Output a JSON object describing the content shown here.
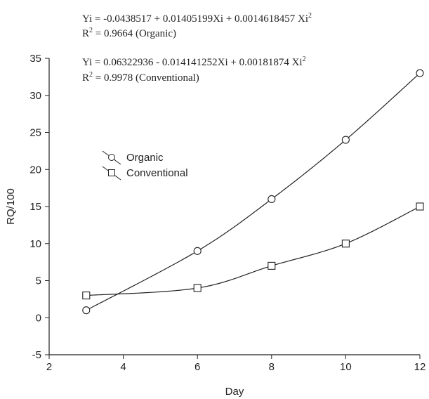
{
  "chart_data": {
    "type": "line",
    "xlabel": "Day",
    "ylabel": "RQ/100",
    "xlim": [
      2,
      12
    ],
    "ylim": [
      -5,
      35
    ],
    "xticks": [
      2,
      4,
      6,
      8,
      10,
      12
    ],
    "yticks": [
      -5,
      0,
      5,
      10,
      15,
      20,
      25,
      30,
      35
    ],
    "grid": false,
    "legend_position": "center-left",
    "series": [
      {
        "name": "Organic",
        "marker": "circle",
        "color": "#222222",
        "x": [
          3,
          6,
          8,
          10,
          12
        ],
        "y": [
          1,
          9,
          16,
          24,
          33
        ],
        "fit": {
          "a": -0.0438517,
          "b": 0.01405199,
          "c": 0.0014618457
        }
      },
      {
        "name": "Conventional",
        "marker": "square",
        "color": "#222222",
        "x": [
          3,
          6,
          8,
          10,
          12
        ],
        "y": [
          3,
          4,
          7,
          10,
          15
        ],
        "fit": {
          "a": 0.06322936,
          "b": -0.014141252,
          "c": 0.00181874
        }
      }
    ],
    "annotations": {
      "organic_eq": "Yi = -0.0438517 + 0.01405199Xi + 0.0014618457 Xi",
      "organic_eq_sup": "2",
      "organic_r2_prefix": "R",
      "organic_r2_sup": "2",
      "organic_r2_value": " = 0.9664 (Organic)",
      "conventional_eq": "Yi = 0.06322936 - 0.014141252Xi + 0.00181874 Xi",
      "conventional_eq_sup": "2",
      "conventional_r2_prefix": "R",
      "conventional_r2_sup": "2",
      "conventional_r2_value": " = 0.9978 (Conventional)"
    }
  }
}
